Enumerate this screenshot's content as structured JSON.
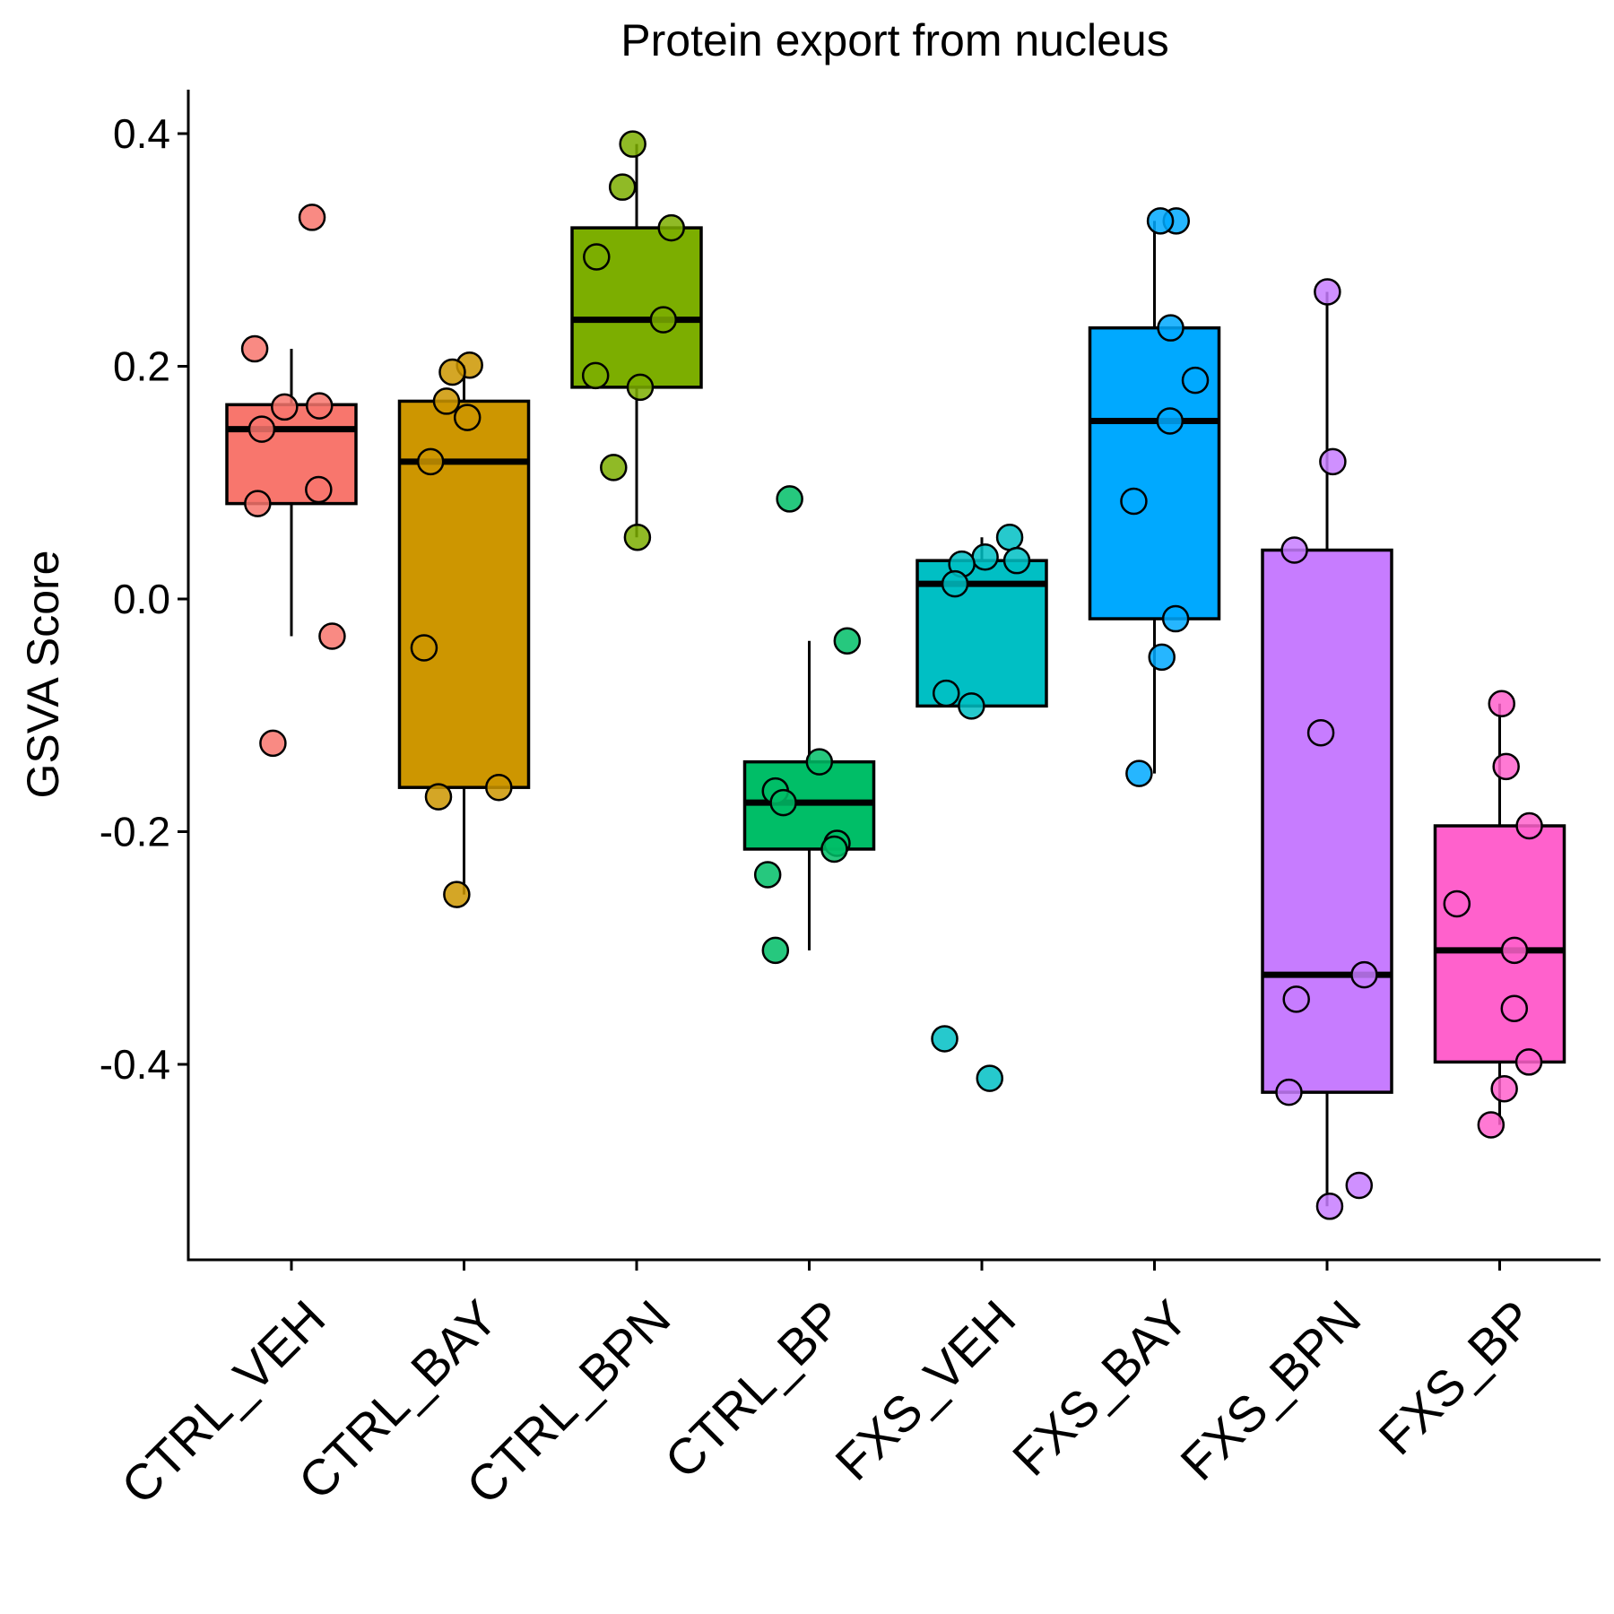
{
  "chart_data": {
    "type": "box",
    "title": "Protein export from nucleus",
    "xlabel": "",
    "ylabel": "GSVA Score",
    "ylim": [
      -0.57,
      0.435
    ],
    "yticks": [
      0.4,
      0.2,
      0.0,
      -0.2,
      -0.4
    ],
    "ytick_labels": [
      "0.4",
      "0.2",
      "0.0",
      "-0.2",
      "-0.4"
    ],
    "grid": false,
    "legend": "none",
    "categories": [
      "CTRL_VEH",
      "CTRL_BAY",
      "CTRL_BPN",
      "CTRL_BP",
      "FXS_VEH",
      "FXS_BAY",
      "FXS_BPN",
      "FXS_BP"
    ],
    "colors": [
      "#F8766D",
      "#CD9600",
      "#7CAE00",
      "#00BE67",
      "#00BFC4",
      "#00A9FF",
      "#C77CFF",
      "#FF61CC"
    ],
    "boxes": [
      {
        "q1": 0.082,
        "median": 0.146,
        "q3": 0.167,
        "whisker_low": -0.032,
        "whisker_high": 0.215
      },
      {
        "q1": -0.162,
        "median": 0.118,
        "q3": 0.17,
        "whisker_low": -0.254,
        "whisker_high": 0.201
      },
      {
        "q1": 0.182,
        "median": 0.24,
        "q3": 0.319,
        "whisker_low": 0.053,
        "whisker_high": 0.391
      },
      {
        "q1": -0.215,
        "median": -0.175,
        "q3": -0.14,
        "whisker_low": -0.302,
        "whisker_high": -0.036
      },
      {
        "q1": -0.092,
        "median": 0.013,
        "q3": 0.033,
        "whisker_low": -0.092,
        "whisker_high": 0.053
      },
      {
        "q1": -0.017,
        "median": 0.153,
        "q3": 0.233,
        "whisker_low": -0.15,
        "whisker_high": 0.325
      },
      {
        "q1": -0.424,
        "median": -0.323,
        "q3": 0.042,
        "whisker_low": -0.522,
        "whisker_high": 0.264
      },
      {
        "q1": -0.398,
        "median": -0.302,
        "q3": -0.195,
        "whisker_low": -0.452,
        "whisker_high": -0.09
      }
    ],
    "points": [
      [
        0.328,
        0.215,
        0.165,
        0.166,
        0.146,
        0.094,
        0.082,
        -0.032,
        -0.124
      ],
      [
        0.201,
        0.195,
        0.17,
        0.156,
        0.118,
        -0.042,
        -0.162,
        -0.17,
        -0.254
      ],
      [
        0.391,
        0.354,
        0.319,
        0.294,
        0.24,
        0.192,
        0.182,
        0.113,
        0.053
      ],
      [
        0.086,
        -0.036,
        -0.14,
        -0.165,
        -0.175,
        -0.21,
        -0.215,
        -0.237,
        -0.302
      ],
      [
        0.053,
        0.036,
        0.033,
        0.03,
        0.013,
        -0.081,
        -0.092,
        -0.378,
        -0.412
      ],
      [
        0.325,
        0.325,
        0.233,
        0.188,
        0.153,
        0.084,
        -0.017,
        -0.05,
        -0.15
      ],
      [
        0.264,
        0.118,
        0.042,
        -0.115,
        -0.323,
        -0.344,
        -0.424,
        -0.504,
        -0.522
      ],
      [
        -0.09,
        -0.144,
        -0.195,
        -0.262,
        -0.302,
        -0.352,
        -0.398,
        -0.421,
        -0.452
      ]
    ]
  }
}
